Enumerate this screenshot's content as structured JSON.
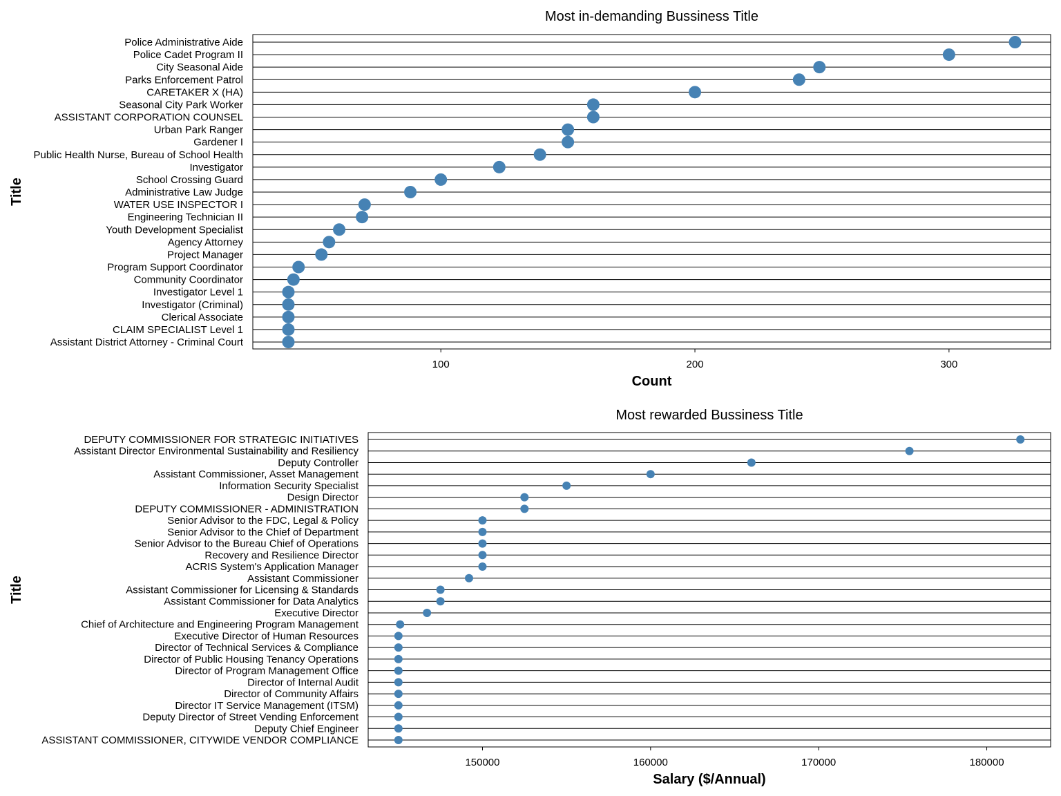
{
  "colors": {
    "point": "#4682B4",
    "line": "#000000"
  },
  "chart_data": [
    {
      "type": "scatter",
      "title": "Most in-demanding Bussiness Title",
      "xlabel": "Count",
      "ylabel": "Title",
      "xlim": [
        26,
        340
      ],
      "xticks": [
        100,
        200,
        300
      ],
      "grid": "horizontal lines per category",
      "categories": [
        "Police Administrative Aide",
        "Police Cadet Program II",
        "City Seasonal Aide",
        "Parks Enforcement Patrol",
        "CARETAKER X (HA)",
        "Seasonal City Park Worker",
        "ASSISTANT CORPORATION COUNSEL",
        "Urban Park Ranger",
        "Gardener I",
        "Public Health Nurse, Bureau of School Health",
        "Investigator",
        "School Crossing Guard",
        "Administrative Law Judge",
        "WATER USE INSPECTOR I",
        "Engineering Technician II",
        "Youth Development Specialist",
        "Agency Attorney",
        "Project Manager",
        "Program Support Coordinator",
        "Community Coordinator",
        "Investigator Level 1",
        "Investigator (Criminal)",
        "Clerical Associate",
        "CLAIM SPECIALIST Level 1",
        "Assistant District Attorney - Criminal Court"
      ],
      "values": [
        326,
        300,
        249,
        241,
        200,
        160,
        160,
        150,
        150,
        139,
        123,
        100,
        88,
        70,
        69,
        60,
        56,
        53,
        44,
        42,
        40,
        40,
        40,
        40,
        40
      ]
    },
    {
      "type": "scatter",
      "title": "Most rewarded Bussiness Title",
      "xlabel": "Salary ($/Annual)",
      "ylabel": "Title",
      "xlim": [
        143200,
        183800
      ],
      "xticks": [
        150000,
        160000,
        170000,
        180000
      ],
      "grid": "horizontal lines per category",
      "categories": [
        "DEPUTY COMMISSIONER FOR  STRATEGIC INITIATIVES",
        "Assistant Director  Environmental Sustainability and Resiliency",
        "Deputy Controller",
        "Assistant Commissioner, Asset Management",
        "Information Security Specialist",
        "Design Director",
        "DEPUTY COMMISSIONER - ADMINISTRATION",
        "Senior Advisor to the FDC, Legal & Policy",
        "Senior Advisor to the Chief of Department",
        "Senior Advisor to the Bureau Chief of Operations",
        "Recovery and Resilience Director",
        "ACRIS System's Application Manager",
        "Assistant Commissioner",
        "Assistant Commissioner for Licensing & Standards",
        "Assistant Commissioner for Data Analytics",
        "Executive Director",
        "Chief of Architecture and Engineering Program Management",
        "Executive Director of Human Resources",
        "Director of Technical Services & Compliance",
        "Director of Public Housing Tenancy Operations",
        "Director of Program Management Office",
        "Director of Internal Audit",
        "Director of Community Affairs",
        "Director IT Service Management (ITSM)",
        "Deputy Director of Street Vending Enforcement",
        "Deputy Chief Engineer",
        "ASSISTANT COMMISSIONER, CITYWIDE VENDOR COMPLIANCE"
      ],
      "values": [
        182000,
        175400,
        166000,
        160000,
        155000,
        152500,
        152500,
        150000,
        150000,
        150000,
        150000,
        150000,
        149200,
        147500,
        147500,
        146700,
        145100,
        145000,
        145000,
        145000,
        145000,
        145000,
        145000,
        145000,
        145000,
        145000,
        145000
      ]
    }
  ]
}
